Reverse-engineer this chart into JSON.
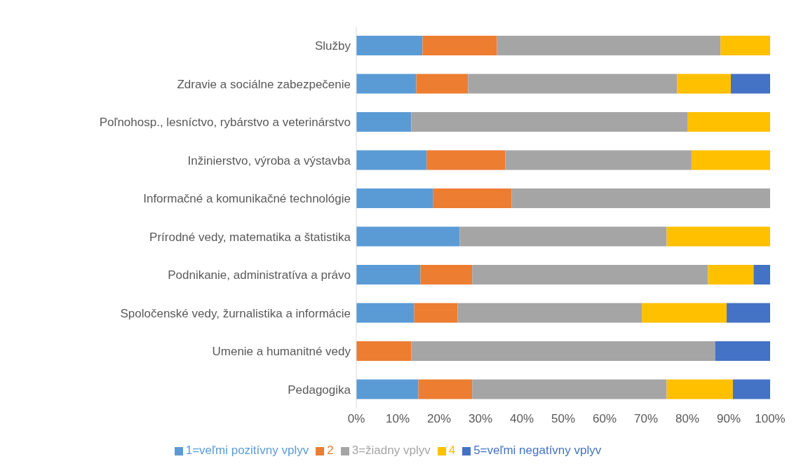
{
  "chart_data": {
    "type": "bar",
    "orientation": "horizontal",
    "stacked": true,
    "categories": [
      "Služby",
      "Zdravie a sociálne zabezpečenie",
      "Poľnohosp., lesníctvo, rybárstvo a veterinárstvo",
      "Inžinierstvo, výroba a výstavba",
      "Informačné a komunikačné technológie",
      "Prírodné vedy, matematika a štatistika",
      "Podnikanie, administratíva a právo",
      "Spoločenské vedy, žurnalistika a informácie",
      "Umenie a humanitné vedy",
      "Pedagogika"
    ],
    "series": [
      {
        "name": "1=veľmi pozitívny vplyv",
        "color": "#5b9bd5",
        "values": [
          16,
          14.5,
          13.3,
          17,
          18.5,
          25,
          15.5,
          14,
          0,
          15
        ]
      },
      {
        "name": "2",
        "color": "#ed7d31",
        "values": [
          18,
          12.5,
          0,
          19,
          19,
          0,
          12.5,
          10.5,
          13.3,
          13
        ]
      },
      {
        "name": "3=žiadny vplyv",
        "color": "#a5a5a5",
        "values": [
          54,
          50.5,
          66.7,
          45,
          62.5,
          50,
          57,
          44.5,
          73.4,
          47
        ]
      },
      {
        "name": "4",
        "color": "#ffc000",
        "values": [
          12,
          13,
          20,
          19,
          0,
          25,
          11,
          20.5,
          0,
          16
        ]
      },
      {
        "name": "5=veľmi negatívny vplyv",
        "color": "#4472c4",
        "values": [
          0,
          9.5,
          0,
          0,
          0,
          0,
          4,
          10.5,
          13.3,
          9
        ]
      }
    ],
    "xlim": [
      0,
      100
    ],
    "xticks": [
      {
        "value": 0,
        "label": "0%"
      },
      {
        "value": 10,
        "label": "10%"
      },
      {
        "value": 20,
        "label": "20%"
      },
      {
        "value": 30,
        "label": "30%"
      },
      {
        "value": 40,
        "label": "40%"
      },
      {
        "value": 50,
        "label": "50%"
      },
      {
        "value": 60,
        "label": "60%"
      },
      {
        "value": 70,
        "label": "70%"
      },
      {
        "value": 80,
        "label": "80%"
      },
      {
        "value": 90,
        "label": "90%"
      },
      {
        "value": 100,
        "label": "100%"
      }
    ],
    "grid": false,
    "legend": "bottom"
  }
}
